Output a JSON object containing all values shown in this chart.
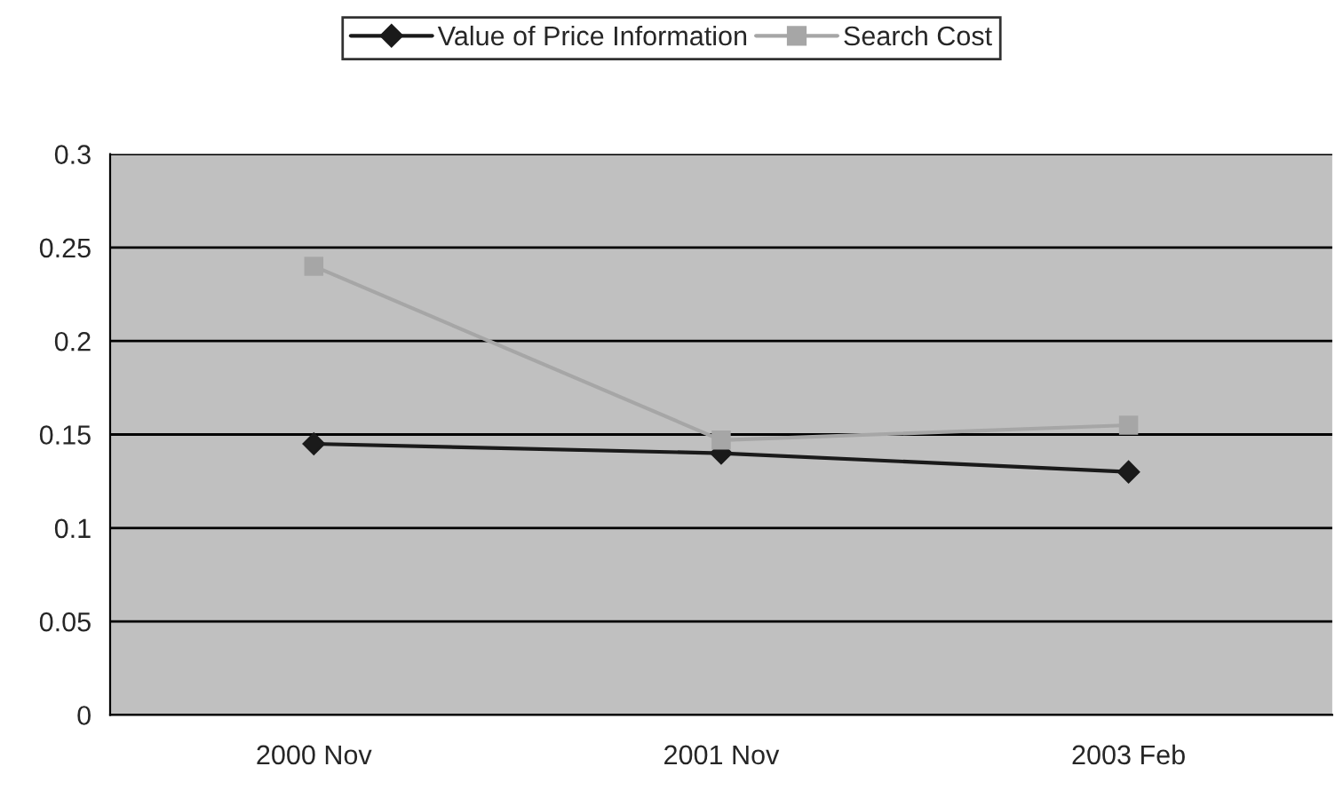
{
  "chart_data": {
    "type": "line",
    "categories": [
      "2000 Nov",
      "2001 Nov",
      "2003 Feb"
    ],
    "series": [
      {
        "name": "Value of Price Information",
        "color": "#1a1a1a",
        "marker": "diamond",
        "values": [
          0.145,
          0.14,
          0.13
        ]
      },
      {
        "name": "Search Cost",
        "color": "#a6a6a6",
        "marker": "square",
        "values": [
          0.24,
          0.147,
          0.155
        ]
      }
    ],
    "ylim": [
      0,
      0.3
    ],
    "yticks": [
      0,
      0.05,
      0.1,
      0.15,
      0.2,
      0.25,
      0.3
    ],
    "grid": "y",
    "legend": "top"
  }
}
